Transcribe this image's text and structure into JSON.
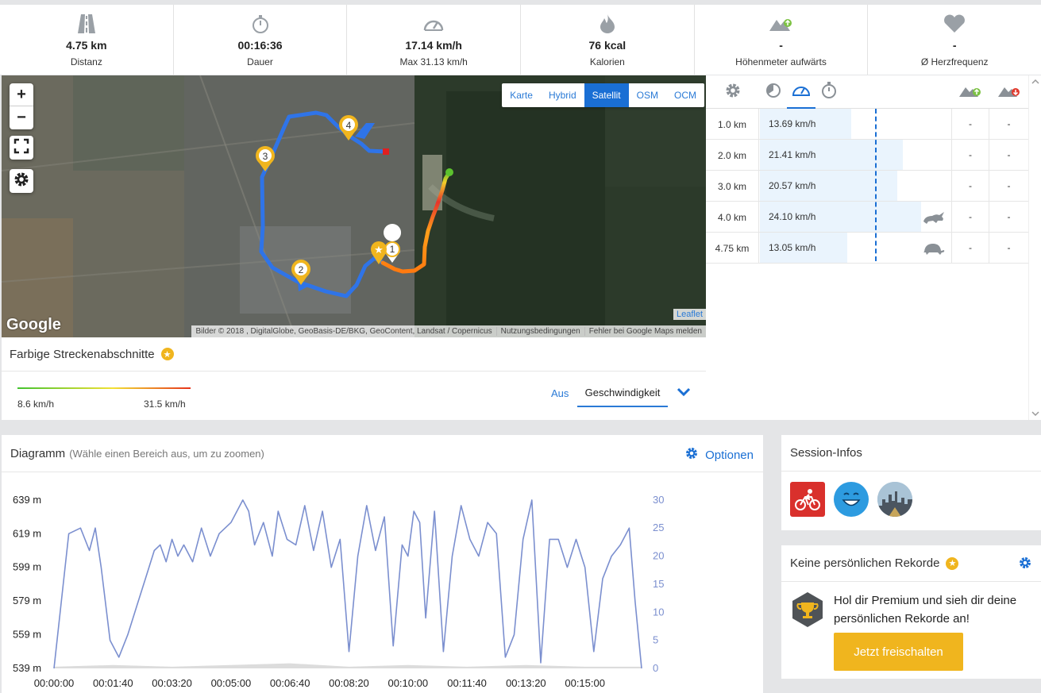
{
  "stats": [
    {
      "icon": "road-icon",
      "value": "4.75 km",
      "label": "Distanz"
    },
    {
      "icon": "stopwatch-icon",
      "value": "00:16:36",
      "label": "Dauer"
    },
    {
      "icon": "speedometer-icon",
      "value": "17.14 km/h",
      "label": "Max 31.13 km/h"
    },
    {
      "icon": "flame-icon",
      "value": "76 kcal",
      "label": "Kalorien"
    },
    {
      "icon": "mountain-up-icon",
      "value": "-",
      "label": "Höhenmeter aufwärts"
    },
    {
      "icon": "heart-icon",
      "value": "-",
      "label": "Ø Herzfrequenz"
    }
  ],
  "map": {
    "zoom_in": "+",
    "zoom_out": "−",
    "layers": [
      "Karte",
      "Hybrid",
      "Satellit",
      "OSM",
      "OCM"
    ],
    "active_layer": "Satellit",
    "markers": [
      "1",
      "2",
      "3",
      "4"
    ],
    "google_logo": "Google",
    "leaflet": "Leaflet",
    "attribution": [
      "Bilder © 2018 , DigitalGlobe, GeoBasis-DE/BKG, GeoContent, Landsat / Copernicus",
      "Nutzungsbedingungen",
      "Fehler bei Google Maps melden"
    ]
  },
  "segments": {
    "title": "Farbige Streckenabschnitte",
    "min_label": "8.6 km/h",
    "max_label": "31.5 km/h",
    "off_label": "Aus",
    "selected": "Geschwindigkeit"
  },
  "km_table": {
    "header_icons": [
      "gear-icon",
      "pace-icon",
      "speedometer-icon",
      "stopwatch-icon",
      "mountain-up-icon",
      "mountain-down-icon"
    ],
    "rows": [
      {
        "km": "1.0 km",
        "speed": "13.69 km/h",
        "speed_value": 13.69,
        "marker": "",
        "up": "-",
        "down": "-"
      },
      {
        "km": "2.0 km",
        "speed": "21.41 km/h",
        "speed_value": 21.41,
        "marker": "",
        "up": "-",
        "down": "-"
      },
      {
        "km": "3.0 km",
        "speed": "20.57 km/h",
        "speed_value": 20.57,
        "marker": "",
        "up": "-",
        "down": "-"
      },
      {
        "km": "4.0 km",
        "speed": "24.10 km/h",
        "speed_value": 24.1,
        "marker": "rabbit-icon",
        "up": "-",
        "down": "-"
      },
      {
        "km": "4.75 km",
        "speed": "13.05 km/h",
        "speed_value": 13.05,
        "marker": "turtle-icon",
        "up": "-",
        "down": "-"
      }
    ]
  },
  "diagram": {
    "title": "Diagramm",
    "hint": "(Wähle einen Bereich aus, um zu zoomen)",
    "options": "Optionen"
  },
  "chart_data": {
    "type": "line",
    "x_ticks": [
      "00:00:00",
      "00:01:40",
      "00:03:20",
      "00:05:00",
      "00:06:40",
      "00:08:20",
      "00:10:00",
      "00:11:40",
      "00:13:20",
      "00:15:00"
    ],
    "y_left_ticks": [
      "639 m",
      "619 m",
      "599 m",
      "579 m",
      "559 m",
      "539 m"
    ],
    "y_right_ticks": [
      "30",
      "25",
      "20",
      "15",
      "10",
      "5",
      "0"
    ],
    "ylim_left": [
      539,
      639
    ],
    "ylim_right": [
      0,
      30
    ],
    "xlim_seconds": [
      0,
      996
    ],
    "series": [
      {
        "axis": "right",
        "color": "#7b8fcf",
        "x": [
          0,
          25,
          45,
          60,
          70,
          80,
          95,
          110,
          125,
          140,
          155,
          170,
          180,
          190,
          200,
          210,
          220,
          235,
          250,
          265,
          280,
          300,
          320,
          330,
          340,
          355,
          370,
          380,
          395,
          410,
          425,
          440,
          455,
          470,
          485,
          500,
          515,
          530,
          545,
          560,
          575,
          590,
          600,
          610,
          620,
          630,
          645,
          660,
          675,
          690,
          705,
          720,
          735,
          750,
          765,
          780,
          795,
          810,
          825,
          840,
          855,
          870,
          885,
          900,
          915,
          930,
          945,
          960,
          975,
          985,
          996
        ],
        "values": [
          0,
          24,
          25,
          21,
          25,
          18,
          5,
          2,
          6,
          11,
          16,
          21,
          22,
          19,
          23,
          20,
          22,
          19,
          25,
          20,
          24,
          26,
          30,
          28,
          22,
          26,
          20,
          28,
          23,
          22,
          29,
          21,
          28,
          18,
          23,
          3,
          20,
          29,
          21,
          27,
          4,
          22,
          20,
          28,
          26,
          9,
          28,
          3,
          20,
          29,
          23,
          20,
          26,
          24,
          2,
          6,
          23,
          30,
          1,
          23,
          23,
          18,
          23,
          18,
          3,
          16,
          20,
          22,
          25,
          12,
          0
        ]
      }
    ],
    "elevation_fill": {
      "axis": "left",
      "color": "#dcdcdc",
      "x": [
        0,
        100,
        200,
        300,
        400,
        500,
        600,
        700,
        800,
        900,
        996
      ],
      "values": [
        540,
        541,
        540,
        541,
        542,
        540,
        541,
        540,
        541,
        540,
        540
      ]
    }
  },
  "session_infos": {
    "title": "Session-Infos",
    "icons": [
      "bike-icon",
      "smiley-icon",
      "city-weather-icon"
    ]
  },
  "records": {
    "title": "Keine persönlichen Rekorde",
    "text_line1": "Hol dir Premium und sieh dir deine",
    "text_line2": "persönlichen Rekorde an!",
    "button": "Jetzt freischalten"
  },
  "colors": {
    "accent": "#1a6fd4",
    "premium": "#f0b51e",
    "track_blue": "#2f74e8"
  }
}
